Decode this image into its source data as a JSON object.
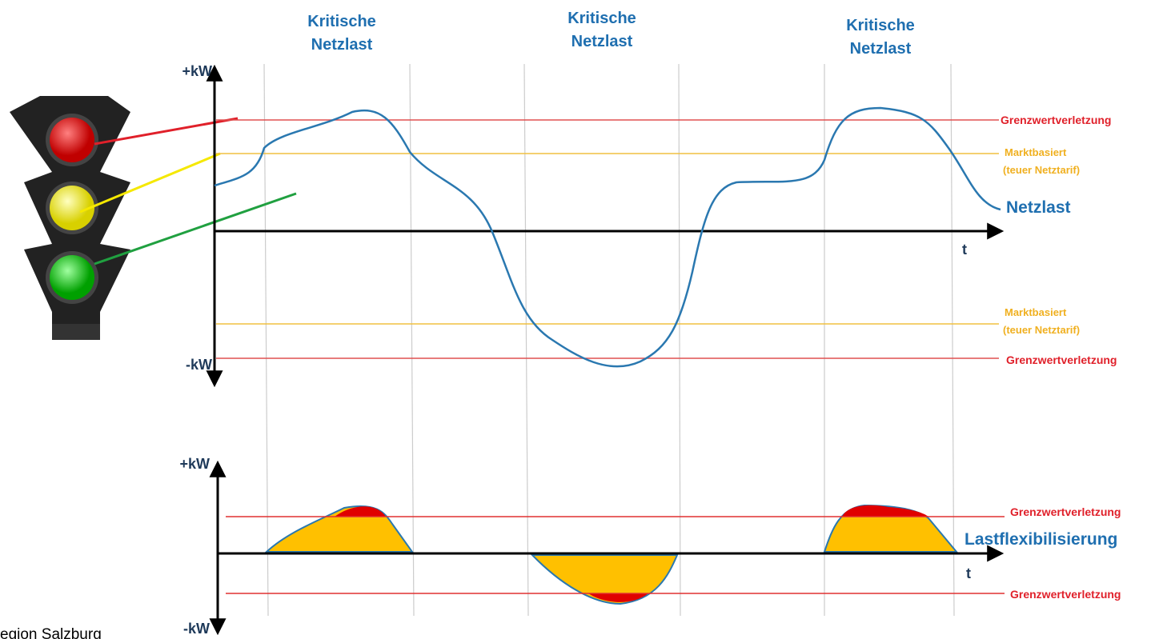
{
  "header_labels": [
    {
      "line1": "Kritische",
      "line2": "Netzlast"
    },
    {
      "line1": "Kritische",
      "line2": "Netzlast"
    },
    {
      "line1": "Kritische",
      "line2": "Netzlast"
    }
  ],
  "upper_chart": {
    "y_top": "+kW",
    "y_bottom": "-kW",
    "x_axis": "t",
    "curve_label": "Netzlast",
    "thresholds": [
      {
        "label": "Grenzwertverletzung"
      },
      {
        "label": "Marktbasiert",
        "sublabel": "(teuer Netztarif)"
      },
      {
        "label": "Marktbasiert",
        "sublabel": "(teuer Netztarif)"
      },
      {
        "label": "Grenzwertverletzung"
      }
    ]
  },
  "lower_chart": {
    "y_top": "+kW",
    "y_bottom": "-kW",
    "x_axis": "t",
    "curve_label": "Lastflexibilisierung",
    "thresholds": [
      {
        "label": "Grenzwertverletzung"
      },
      {
        "label": "Grenzwertverletzung"
      }
    ]
  },
  "footer": "egion Salzburg"
}
